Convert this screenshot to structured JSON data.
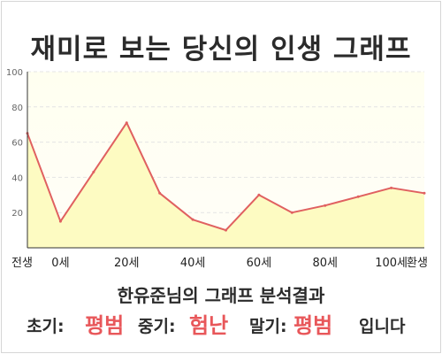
{
  "title": "재미로 보는 당신의 인생 그래프",
  "chart_data": {
    "type": "area",
    "title": "재미로 보는 당신의 인생 그래프",
    "x_tick_labels": [
      "전생",
      "0세",
      "20세",
      "40세",
      "60세",
      "80세",
      "100세",
      "환생"
    ],
    "y_ticks": [
      20,
      40,
      60,
      80,
      100
    ],
    "ylim": [
      0,
      100
    ],
    "grid": true,
    "series": [
      {
        "x": [
          -10,
          0,
          10,
          20,
          30,
          40,
          50,
          60,
          70,
          80,
          90,
          100,
          110
        ],
        "y": [
          65,
          15,
          43,
          71,
          31,
          16,
          10,
          30,
          20,
          24,
          29,
          34,
          31
        ]
      }
    ],
    "line_color": "#e06060",
    "fill_color": "#fdfbc2"
  },
  "summary": "한유준님의 그래프 분석결과",
  "result": {
    "early_label": "초기:",
    "early_value": "평범",
    "mid_label": "중기:",
    "mid_value": "험난",
    "late_label": "말기:",
    "late_value": "평범",
    "ending": "입니다"
  }
}
